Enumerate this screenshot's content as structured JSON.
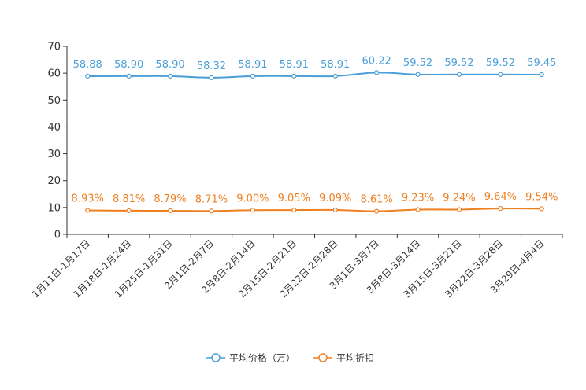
{
  "chart_data": {
    "type": "line",
    "categories": [
      "1月11日-1月17日",
      "1月18日-1月24日",
      "1月25日-1月31日",
      "2月1日-2月7日",
      "2月8日-2月14日",
      "2月15日-2月21日",
      "2月22日-2月28日",
      "3月1日-3月7日",
      "3月8日-3月14日",
      "3月15日-3月21日",
      "3月22日-3月28日",
      "3月29日-4月4日"
    ],
    "series": [
      {
        "name": "平均价格（万）",
        "color": "#4a9fd8",
        "values": [
          58.88,
          58.9,
          58.9,
          58.32,
          58.91,
          58.91,
          58.91,
          60.22,
          59.52,
          59.52,
          59.52,
          59.45
        ],
        "labels": [
          "58.88",
          "58.90",
          "58.90",
          "58.32",
          "58.91",
          "58.91",
          "58.91",
          "60.22",
          "59.52",
          "59.52",
          "59.52",
          "59.45"
        ]
      },
      {
        "name": "平均折扣",
        "color": "#f07f1f",
        "values": [
          8.93,
          8.81,
          8.79,
          8.71,
          9.0,
          9.05,
          9.09,
          8.61,
          9.23,
          9.24,
          9.64,
          9.54
        ],
        "labels": [
          "8.93%",
          "8.81%",
          "8.79%",
          "8.71%",
          "9.00%",
          "9.05%",
          "9.09%",
          "8.61%",
          "9.23%",
          "9.24%",
          "9.64%",
          "9.54%"
        ]
      }
    ],
    "yticks": [
      "0",
      "10",
      "20",
      "30",
      "40",
      "50",
      "60",
      "70"
    ],
    "ylim": [
      0,
      70
    ],
    "title": "",
    "xlabel": "",
    "ylabel": "",
    "legend_position": "bottom-center"
  }
}
